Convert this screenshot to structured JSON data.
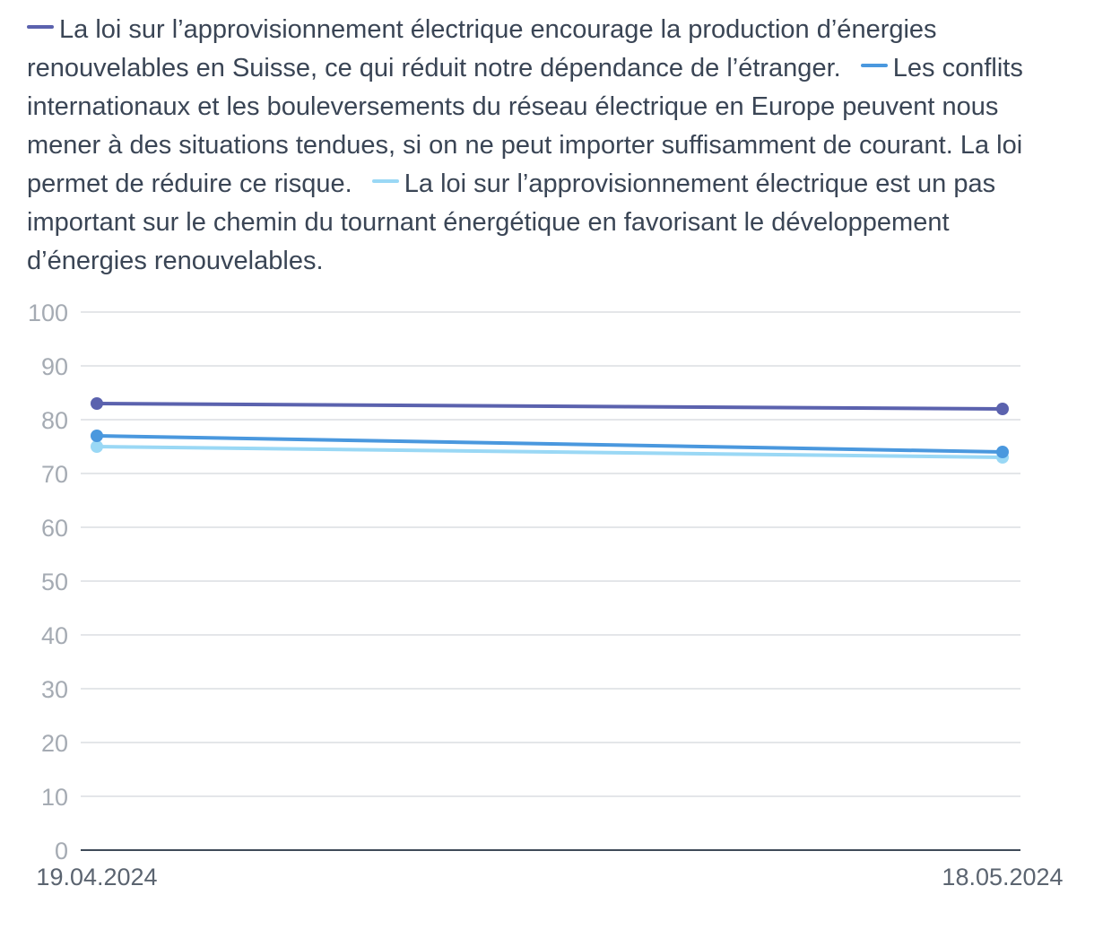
{
  "chart_data": {
    "type": "line",
    "title": "",
    "xlabel": "",
    "ylabel": "",
    "x": [
      "19.04.2024",
      "18.05.2024"
    ],
    "ylim": [
      0,
      100
    ],
    "yticks": [
      0,
      10,
      20,
      30,
      40,
      50,
      60,
      70,
      80,
      90,
      100
    ],
    "grid": true,
    "legend_position": "top",
    "series": [
      {
        "name": "La loi sur l’approvisionnement électrique encourage la production d’énergies renouvelables en Suisse, ce qui réduit notre dépendance de l’étranger.",
        "color": "#5b62ae",
        "values": [
          83,
          82
        ]
      },
      {
        "name": "Les conflits internationaux et les bouleversements du réseau électrique en Europe peuvent nous mener à des situations tendues, si on ne peut importer suffisamment de courant. La loi permet de réduire ce risque.",
        "color": "#4a98de",
        "values": [
          77,
          74
        ]
      },
      {
        "name": "La loi sur l’approvisionnement électrique est un pas important sur le chemin du tournant énergétique en favorisant le développement d’énergies renouvelables.",
        "color": "#9ad8f5",
        "values": [
          75,
          73
        ]
      }
    ]
  }
}
